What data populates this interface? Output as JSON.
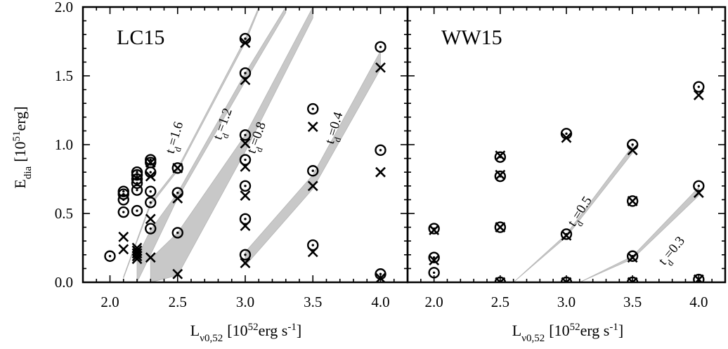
{
  "shared": {
    "ylabel_main": "E",
    "ylabel_sub": "dia",
    "ylabel_unit_pre": "[10",
    "ylabel_unit_exp": "51",
    "ylabel_unit_post": "erg]",
    "yticks": [
      "0.0",
      "0.5",
      "1.0",
      "1.5",
      "2.0"
    ],
    "xlabel_main": "L",
    "xlabel_sub": "ν0,52",
    "xlabel_unit_pre": "[10",
    "xlabel_unit_exp": "52",
    "xlabel_unit_post": "erg s",
    "xlabel_unit_exp2": "-1",
    "xlabel_unit_close": "]",
    "xticks": [
      "2.0",
      "2.5",
      "3.0",
      "3.5",
      "4.0"
    ]
  },
  "chart_data": [
    {
      "type": "scatter",
      "title": "LC15",
      "xlim": [
        1.8,
        4.2
      ],
      "ylim": [
        0,
        2.0
      ],
      "grid": false,
      "legend": "none",
      "markers": {
        "circle": "open circle with center dot",
        "cross": "x"
      },
      "series": [
        {
          "marker": "circle",
          "points": [
            [
              2.0,
              0.19
            ],
            [
              2.1,
              0.51
            ],
            [
              2.1,
              0.6
            ],
            [
              2.1,
              0.64
            ],
            [
              2.1,
              0.66
            ],
            [
              2.2,
              0.52
            ],
            [
              2.2,
              0.67
            ],
            [
              2.2,
              0.72
            ],
            [
              2.2,
              0.75
            ],
            [
              2.2,
              0.78
            ],
            [
              2.2,
              0.8
            ],
            [
              2.3,
              0.39
            ],
            [
              2.3,
              0.58
            ],
            [
              2.3,
              0.66
            ],
            [
              2.3,
              0.8
            ],
            [
              2.3,
              0.87
            ],
            [
              2.3,
              0.89
            ],
            [
              2.5,
              0.36
            ],
            [
              2.5,
              0.65
            ],
            [
              2.5,
              0.83
            ],
            [
              3.0,
              0.2
            ],
            [
              3.0,
              0.46
            ],
            [
              3.0,
              0.7
            ],
            [
              3.0,
              0.89
            ],
            [
              3.0,
              1.07
            ],
            [
              3.0,
              1.52
            ],
            [
              3.0,
              1.77
            ],
            [
              3.5,
              0.27
            ],
            [
              3.5,
              0.81
            ],
            [
              3.5,
              1.26
            ],
            [
              4.0,
              0.06
            ],
            [
              4.0,
              0.96
            ],
            [
              4.0,
              1.71
            ]
          ]
        },
        {
          "marker": "cross",
          "points": [
            [
              2.1,
              0.24
            ],
            [
              2.1,
              0.33
            ],
            [
              2.2,
              0.17
            ],
            [
              2.2,
              0.19
            ],
            [
              2.2,
              0.21
            ],
            [
              2.2,
              0.23
            ],
            [
              2.2,
              0.25
            ],
            [
              2.3,
              0.18
            ],
            [
              2.3,
              0.46
            ],
            [
              2.3,
              0.77
            ],
            [
              2.3,
              0.87
            ],
            [
              2.5,
              0.06
            ],
            [
              2.5,
              0.61
            ],
            [
              2.5,
              0.83
            ],
            [
              3.0,
              0.14
            ],
            [
              3.0,
              0.41
            ],
            [
              3.0,
              0.63
            ],
            [
              3.0,
              0.84
            ],
            [
              3.0,
              1.01
            ],
            [
              3.0,
              1.47
            ],
            [
              3.0,
              1.74
            ],
            [
              3.5,
              0.22
            ],
            [
              3.5,
              0.7
            ],
            [
              3.5,
              1.13
            ],
            [
              4.0,
              0.03
            ],
            [
              4.0,
              0.8
            ],
            [
              4.0,
              1.56
            ]
          ]
        }
      ],
      "bands": [
        {
          "label_main": "t",
          "label_sub": "d",
          "label_value": "=1.6",
          "points": [
            [
              2.1,
              0.04
            ],
            [
              2.3,
              0.58
            ],
            [
              2.5,
              0.83
            ],
            [
              3.0,
              1.77
            ],
            [
              3.1,
              2.0
            ]
          ],
          "lower": [
            [
              2.1,
              0.03
            ],
            [
              2.3,
              0.56
            ],
            [
              2.5,
              0.81
            ],
            [
              3.0,
              1.74
            ],
            [
              3.1,
              1.98
            ]
          ]
        },
        {
          "label_main": "t",
          "label_sub": "d",
          "label_value": "=1.2",
          "points": [
            [
              2.2,
              0.18
            ],
            [
              2.3,
              0.38
            ],
            [
              2.5,
              0.65
            ],
            [
              3.0,
              1.52
            ],
            [
              3.3,
              2.0
            ]
          ],
          "lower": [
            [
              2.2,
              0.0
            ],
            [
              2.3,
              0.2
            ],
            [
              2.5,
              0.61
            ],
            [
              3.0,
              1.46
            ],
            [
              3.3,
              1.96
            ]
          ]
        },
        {
          "label_main": "t",
          "label_sub": "d",
          "label_value": "=0.8",
          "points": [
            [
              2.3,
              0.17
            ],
            [
              2.5,
              0.36
            ],
            [
              3.0,
              1.07
            ],
            [
              3.5,
              2.0
            ]
          ],
          "lower": [
            [
              2.3,
              0.0
            ],
            [
              2.5,
              0.05
            ],
            [
              3.0,
              0.95
            ],
            [
              3.5,
              1.92
            ]
          ]
        },
        {
          "label_main": "t",
          "label_sub": "d",
          "label_value": "=0.4",
          "points": [
            [
              3.0,
              0.22
            ],
            [
              3.5,
              0.78
            ],
            [
              4.0,
              1.68
            ]
          ],
          "lower": [
            [
              3.0,
              0.12
            ],
            [
              3.5,
              0.68
            ],
            [
              4.0,
              1.55
            ]
          ]
        }
      ]
    },
    {
      "type": "scatter",
      "title": "WW15",
      "xlim": [
        1.8,
        4.2
      ],
      "ylim": [
        0,
        2.0
      ],
      "grid": false,
      "legend": "none",
      "markers": {
        "circle": "open circle with center dot",
        "cross": "x"
      },
      "series": [
        {
          "marker": "circle",
          "points": [
            [
              2.0,
              0.07
            ],
            [
              2.0,
              0.18
            ],
            [
              2.0,
              0.39
            ],
            [
              2.5,
              0.0
            ],
            [
              2.5,
              0.4
            ],
            [
              2.5,
              0.77
            ],
            [
              2.5,
              0.91
            ],
            [
              3.0,
              0.0
            ],
            [
              3.0,
              0.35
            ],
            [
              3.0,
              1.08
            ],
            [
              3.5,
              0.0
            ],
            [
              3.5,
              0.19
            ],
            [
              3.5,
              0.59
            ],
            [
              3.5,
              1.0
            ],
            [
              4.0,
              0.02
            ],
            [
              4.0,
              0.7
            ],
            [
              4.0,
              1.42
            ]
          ]
        },
        {
          "marker": "cross",
          "points": [
            [
              2.0,
              0.16
            ],
            [
              2.0,
              0.38
            ],
            [
              2.5,
              0.0
            ],
            [
              2.5,
              0.4
            ],
            [
              2.5,
              0.78
            ],
            [
              2.5,
              0.92
            ],
            [
              3.0,
              0.0
            ],
            [
              3.0,
              0.34
            ],
            [
              3.0,
              1.05
            ],
            [
              3.5,
              0.0
            ],
            [
              3.5,
              0.18
            ],
            [
              3.5,
              0.59
            ],
            [
              3.5,
              0.96
            ],
            [
              4.0,
              0.02
            ],
            [
              4.0,
              0.65
            ],
            [
              4.0,
              1.36
            ]
          ]
        }
      ],
      "bands": [
        {
          "label_main": "t",
          "label_sub": "d",
          "label_value": "=0.5",
          "points": [
            [
              2.6,
              0.0
            ],
            [
              3.0,
              0.35
            ],
            [
              3.5,
              0.99
            ]
          ],
          "lower": [
            [
              2.6,
              0.0
            ],
            [
              3.0,
              0.33
            ],
            [
              3.5,
              0.94
            ]
          ]
        },
        {
          "label_main": "t",
          "label_sub": "d",
          "label_value": "=0.3",
          "points": [
            [
              3.1,
              0.0
            ],
            [
              3.5,
              0.19
            ],
            [
              4.0,
              0.69
            ]
          ],
          "lower": [
            [
              3.1,
              0.0
            ],
            [
              3.5,
              0.17
            ],
            [
              4.0,
              0.63
            ]
          ]
        }
      ]
    }
  ]
}
